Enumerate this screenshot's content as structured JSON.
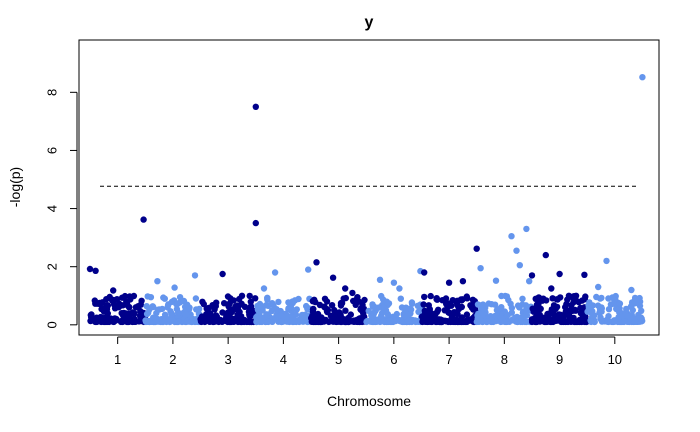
{
  "chart_data": {
    "type": "scatter",
    "title": "y",
    "xlabel": "Chromosome",
    "ylabel": "-log(p)",
    "xlim": [
      0.3,
      10.8
    ],
    "ylim": [
      -0.35,
      9.8
    ],
    "x_ticks": [
      "1",
      "2",
      "3",
      "4",
      "5",
      "6",
      "7",
      "8",
      "9",
      "10"
    ],
    "y_ticks": [
      "0",
      "2",
      "4",
      "6",
      "8"
    ],
    "grid": false,
    "legend": "none",
    "significance_threshold": 4.77,
    "colors": {
      "odd_chromosome": "#00008B",
      "even_chromosome": "#6495ED",
      "threshold_line": "#000000"
    },
    "series": [
      {
        "chromosome": 1,
        "x": [
          0.5,
          0.6,
          0.92,
          1.47
        ],
        "y": [
          1.92,
          1.86,
          1.18,
          3.62
        ]
      },
      {
        "chromosome": 2,
        "x": [
          1.72,
          2.03,
          2.4
        ],
        "y": [
          1.5,
          1.28,
          1.7
        ]
      },
      {
        "chromosome": 3,
        "x": [
          2.9,
          3.25,
          3.5,
          3.5
        ],
        "y": [
          1.75,
          1.0,
          7.5,
          3.5
        ]
      },
      {
        "chromosome": 4,
        "x": [
          3.65,
          3.85,
          4.45
        ],
        "y": [
          1.25,
          1.8,
          1.9
        ]
      },
      {
        "chromosome": 5,
        "x": [
          4.6,
          4.9,
          5.12,
          5.25
        ],
        "y": [
          2.15,
          1.62,
          1.25,
          1.1
        ]
      },
      {
        "chromosome": 6,
        "x": [
          5.75,
          6.0,
          6.1,
          6.48
        ],
        "y": [
          1.55,
          1.45,
          1.25,
          1.85
        ]
      },
      {
        "chromosome": 7,
        "x": [
          6.55,
          7.0,
          7.25,
          7.5
        ],
        "y": [
          1.8,
          1.45,
          1.5,
          2.62
        ]
      },
      {
        "chromosome": 8,
        "x": [
          7.57,
          7.85,
          8.13,
          8.22,
          8.28,
          8.4,
          8.45
        ],
        "y": [
          1.95,
          1.52,
          3.05,
          2.55,
          2.05,
          3.3,
          1.5
        ]
      },
      {
        "chromosome": 9,
        "x": [
          8.5,
          8.75,
          8.85,
          9.0,
          9.3,
          9.45
        ],
        "y": [
          1.7,
          2.4,
          1.25,
          1.75,
          1.0,
          1.72
        ]
      },
      {
        "chromosome": 10,
        "x": [
          9.7,
          9.85,
          10.3,
          10.5
        ],
        "y": [
          1.3,
          2.2,
          1.2,
          8.52
        ]
      }
    ]
  }
}
